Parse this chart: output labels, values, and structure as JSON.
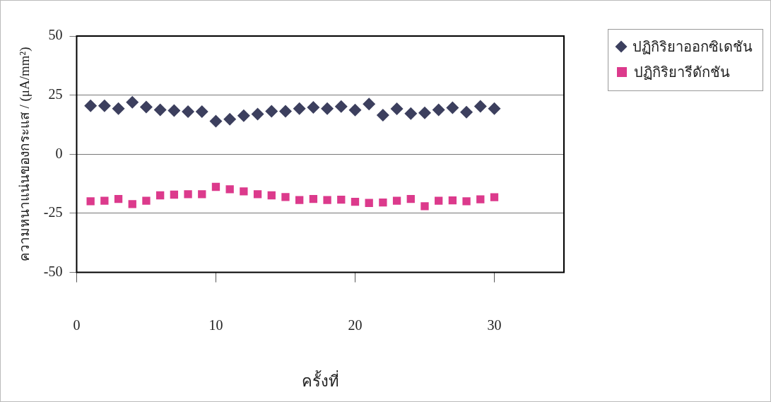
{
  "chart_data": {
    "type": "scatter",
    "xlabel": "ครั้งที่",
    "ylabel": "ความหนาแน่นของกระแส / (μA/mm²)",
    "x": [
      1,
      2,
      3,
      4,
      5,
      6,
      7,
      8,
      9,
      10,
      11,
      12,
      13,
      14,
      15,
      16,
      17,
      18,
      19,
      20,
      21,
      22,
      23,
      24,
      25,
      26,
      27,
      28,
      29,
      30
    ],
    "series": [
      {
        "name": "ปฏิกิริยาออกซิเดชัน",
        "color": "#3c3f5e",
        "marker": "diamond",
        "values": [
          20.5,
          20.5,
          19.3,
          22,
          20,
          18.8,
          18.5,
          18,
          18,
          14,
          14.8,
          16.3,
          17,
          18.2,
          18.2,
          19.3,
          19.8,
          19.3,
          20.2,
          18.7,
          21.2,
          16.5,
          19.2,
          17.2,
          17.5,
          18.8,
          19.7,
          17.8,
          20.3,
          19.3
        ]
      },
      {
        "name": "ปฏิกิริยารีดักชัน",
        "color": "#dc3a8c",
        "marker": "square",
        "values": [
          -19.9,
          -19.7,
          -18.9,
          -21.1,
          -19.7,
          -17.4,
          -17.1,
          -16.9,
          -16.9,
          -13.8,
          -14.8,
          -15.7,
          -16.9,
          -17.4,
          -18.1,
          -19.4,
          -18.9,
          -19.4,
          -19.2,
          -20.1,
          -20.6,
          -20.4,
          -19.7,
          -18.9,
          -22,
          -19.7,
          -19.5,
          -19.9,
          -19.1,
          -18.2
        ]
      }
    ],
    "xlim": [
      0,
      35
    ],
    "xticks": [
      0,
      10,
      20,
      30
    ],
    "ylim": [
      -50,
      50
    ],
    "yticks": [
      -50,
      -25,
      0,
      25,
      50
    ],
    "grid": "y",
    "legend": "top right"
  }
}
